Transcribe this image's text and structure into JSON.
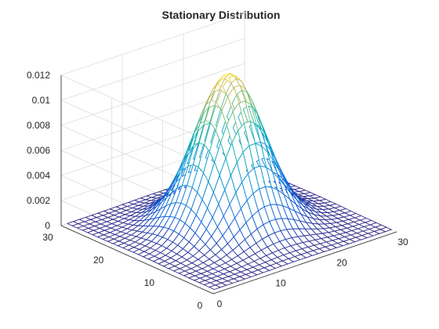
{
  "chart_data": {
    "type": "surface",
    "title": "Stationary Distribution",
    "xlabel": "",
    "ylabel": "",
    "zlabel": "",
    "grid": true,
    "colormap": "parula",
    "xlim": [
      0,
      30
    ],
    "ylim": [
      0,
      30
    ],
    "zlim": [
      0,
      0.012
    ],
    "x_ticks": [
      "0",
      "10",
      "20",
      "30"
    ],
    "y_ticks": [
      "0",
      "10",
      "20",
      "30"
    ],
    "z_ticks": [
      "0",
      "0.002",
      "0.004",
      "0.006",
      "0.008",
      "0.01",
      "0.012"
    ],
    "surface": {
      "shape": "gaussian",
      "grid_range": [
        1,
        30
      ],
      "grid_count": 30,
      "peak_value": 0.0122,
      "peak_x": 15.5,
      "peak_y": 15.5,
      "sigma_x": 4.5,
      "sigma_y": 4.5
    }
  }
}
